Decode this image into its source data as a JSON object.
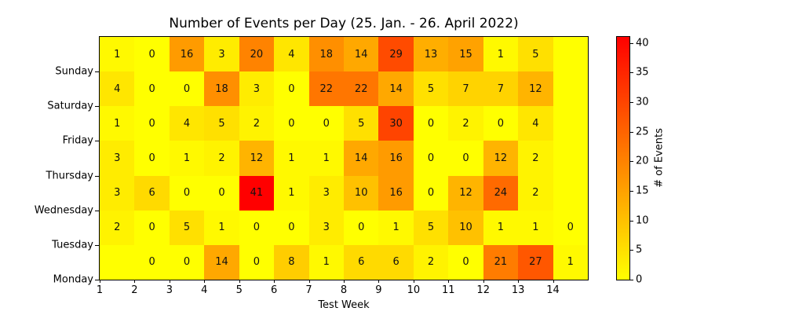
{
  "title": "Number of Events per Day (25. Jan. - 26. April 2022)",
  "chart_data": {
    "type": "heatmap",
    "title": "Number of Events per Day (25. Jan. - 26. April 2022)",
    "xlabel": "Test Week",
    "ylabel": "",
    "x_ticks": [
      "1",
      "2",
      "3",
      "4",
      "5",
      "6",
      "7",
      "8",
      "9",
      "10",
      "11",
      "12",
      "13",
      "14"
    ],
    "x_tick_alignment": "cell-left-edge",
    "y_labels": [
      "Sunday",
      "Saturday",
      "Friday",
      "Thursday",
      "Wednesday",
      "Tuesday",
      "Monday"
    ],
    "y_tick_alignment": "cell-bottom-edge",
    "values": [
      [
        1,
        0,
        16,
        3,
        20,
        4,
        18,
        14,
        29,
        13,
        15,
        1,
        5,
        null
      ],
      [
        4,
        0,
        0,
        18,
        3,
        0,
        22,
        22,
        14,
        5,
        7,
        7,
        12,
        null
      ],
      [
        1,
        0,
        4,
        5,
        2,
        0,
        0,
        5,
        30,
        0,
        2,
        0,
        4,
        null
      ],
      [
        3,
        0,
        1,
        2,
        12,
        1,
        1,
        14,
        16,
        0,
        0,
        12,
        2,
        null
      ],
      [
        3,
        6,
        0,
        0,
        41,
        1,
        3,
        10,
        16,
        0,
        12,
        24,
        2,
        null
      ],
      [
        2,
        0,
        5,
        1,
        0,
        0,
        3,
        0,
        1,
        5,
        10,
        1,
        1,
        0
      ],
      [
        null,
        0,
        0,
        14,
        0,
        8,
        1,
        6,
        6,
        2,
        0,
        21,
        27,
        1
      ]
    ],
    "vmin": 0,
    "vmax": 41,
    "colormap": {
      "name": "autumn_r",
      "low": "#FFFF00",
      "high": "#FF0000"
    },
    "grid": false,
    "colorbar": {
      "label": "# of Events",
      "ticks": [
        0,
        5,
        10,
        15,
        20,
        25,
        30,
        35,
        40
      ]
    }
  }
}
